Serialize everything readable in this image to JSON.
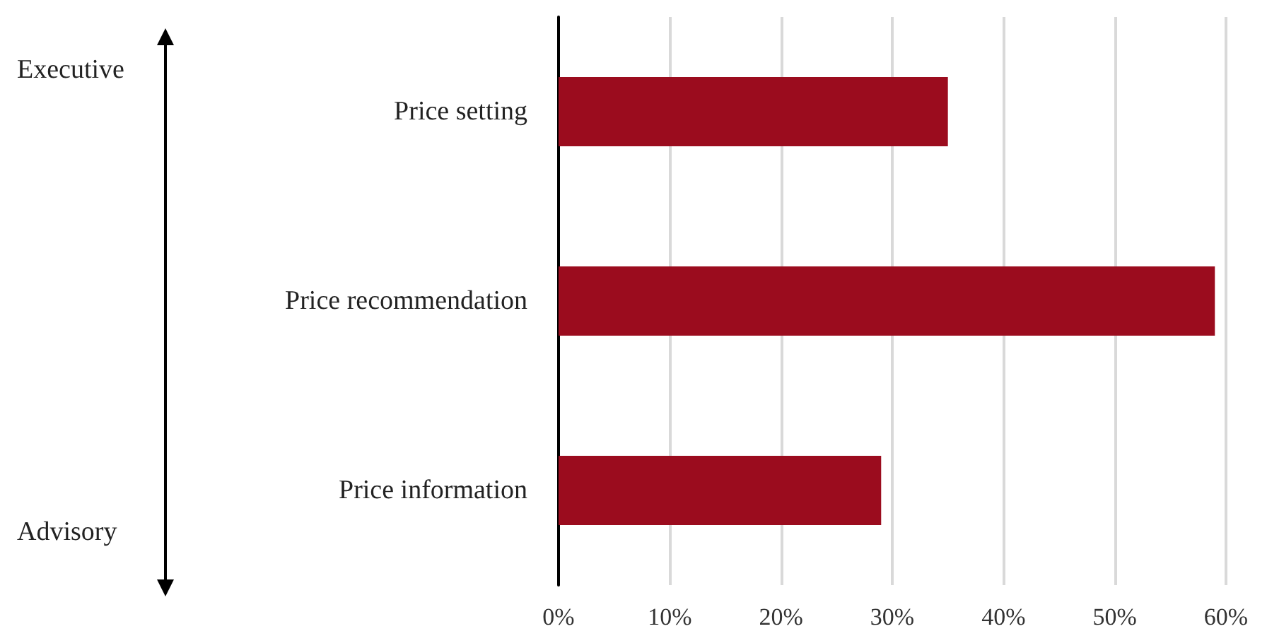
{
  "chart_data": {
    "type": "bar",
    "orientation": "horizontal",
    "categories": [
      "Price setting",
      "Price recommendation",
      "Price information"
    ],
    "values": [
      35,
      59,
      29
    ],
    "color": "#9b0c1e",
    "xlim": [
      0,
      60
    ],
    "xticks": [
      {
        "value": 0,
        "label": "0%"
      },
      {
        "value": 10,
        "label": "10%"
      },
      {
        "value": 20,
        "label": "20%"
      },
      {
        "value": 30,
        "label": "30%"
      },
      {
        "value": 40,
        "label": "40%"
      },
      {
        "value": 50,
        "label": "50%"
      },
      {
        "value": 60,
        "label": "60%"
      }
    ],
    "grid": "x",
    "annotations": [
      "Executive",
      "Advisory"
    ]
  }
}
